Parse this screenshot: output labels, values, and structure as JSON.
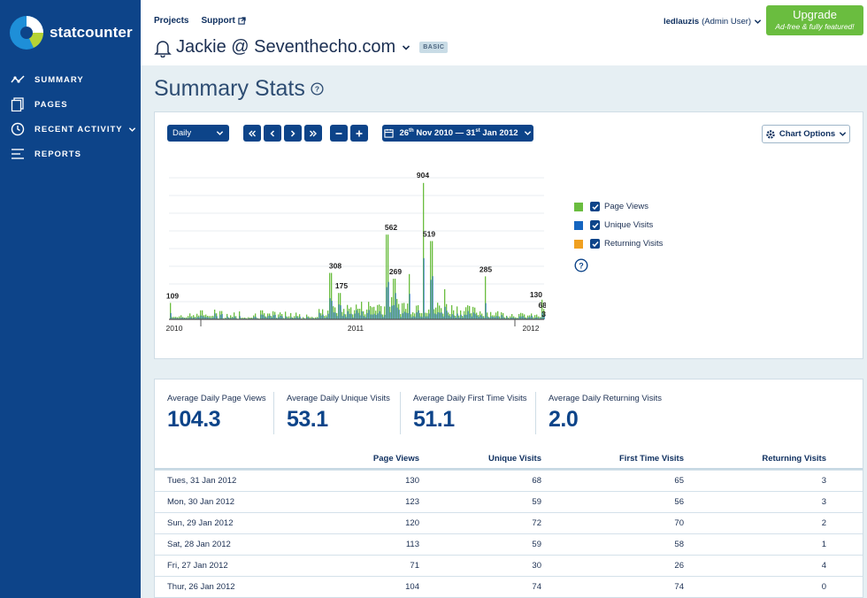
{
  "brand": {
    "name": "statcounter"
  },
  "sidebar": {
    "items": [
      {
        "label": "SUMMARY",
        "icon": "summary-icon"
      },
      {
        "label": "PAGES",
        "icon": "pages-icon"
      },
      {
        "label": "RECENT ACTIVITY",
        "icon": "clock-icon"
      },
      {
        "label": "REPORTS",
        "icon": "reports-icon"
      }
    ]
  },
  "topbar": {
    "links": {
      "projects": "Projects",
      "support": "Support"
    },
    "project_title": "Jackie @ Seventhecho.com",
    "plan_badge": "BASIC",
    "user_name": "ledlauzis",
    "user_role": "(Admin User)",
    "upgrade_label": "Upgrade",
    "upgrade_sub": "Ad-free & fully featured!"
  },
  "page": {
    "title": "Summary Stats"
  },
  "controls": {
    "period": "Daily",
    "date_range": {
      "start_day": "26",
      "start_suffix": "th",
      "start_rest": " Nov 2010 — 31",
      "end_suffix": "st",
      "end_rest": " Jan 2012"
    },
    "chart_options": "Chart Options"
  },
  "chart_data": {
    "type": "bar",
    "x_labels": [
      "2010",
      "2011",
      "2012"
    ],
    "legend": [
      "Page Views",
      "Unique Visits",
      "Returning Visits"
    ],
    "annotations": [
      {
        "label": "904",
        "value": 904
      },
      {
        "label": "562",
        "value": 562
      },
      {
        "label": "519",
        "value": 519
      },
      {
        "label": "308",
        "value": 308
      },
      {
        "label": "285",
        "value": 285
      },
      {
        "label": "269",
        "value": 269
      },
      {
        "label": "175",
        "value": 175
      },
      {
        "label": "130",
        "value": 130
      },
      {
        "label": "109",
        "value": 109
      },
      {
        "label": "68",
        "value": 68
      },
      {
        "label": "3",
        "value": 3
      }
    ],
    "colors": {
      "page_views": "#6abd3f",
      "unique_visits": "#1565c0",
      "returning_visits": "#f0a020"
    },
    "series_summary": [
      {
        "name": "Page Views",
        "daily_average": 104.3
      },
      {
        "name": "Unique Visits",
        "daily_average": 53.1
      },
      {
        "name": "Returning Visits",
        "daily_average": 2.0
      }
    ]
  },
  "stats": [
    {
      "label": "Average Daily Page Views",
      "value": "104.3"
    },
    {
      "label": "Average Daily Unique Visits",
      "value": "53.1"
    },
    {
      "label": "Average Daily First Time Visits",
      "value": "51.1"
    },
    {
      "label": "Average Daily Returning Visits",
      "value": "2.0"
    }
  ],
  "table": {
    "headers": [
      "",
      "Page Views",
      "Unique Visits",
      "First Time Visits",
      "Returning Visits"
    ],
    "rows": [
      [
        "Tues, 31 Jan 2012",
        "130",
        "68",
        "65",
        "3"
      ],
      [
        "Mon, 30 Jan 2012",
        "123",
        "59",
        "56",
        "3"
      ],
      [
        "Sun, 29 Jan 2012",
        "120",
        "72",
        "70",
        "2"
      ],
      [
        "Sat, 28 Jan 2012",
        "113",
        "59",
        "58",
        "1"
      ],
      [
        "Fri, 27 Jan 2012",
        "71",
        "30",
        "26",
        "4"
      ],
      [
        "Thur, 26 Jan 2012",
        "104",
        "74",
        "74",
        "0"
      ]
    ]
  }
}
